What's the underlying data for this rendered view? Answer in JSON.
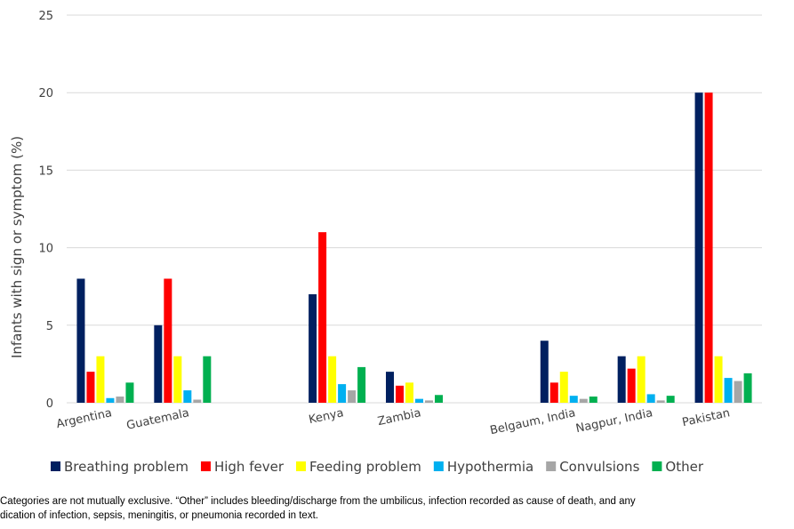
{
  "chart_data": {
    "type": "bar",
    "title": "",
    "xlabel": "",
    "ylabel": "Infants with sign or symptom (%)",
    "ylim": [
      0,
      25
    ],
    "yticks": [
      0,
      5,
      10,
      15,
      20,
      25
    ],
    "grid": true,
    "legend_position": "bottom",
    "categories": [
      "Argentina",
      "Guatemala",
      "",
      "Kenya",
      "Zambia",
      "",
      "Belgaum, India",
      "Nagpur, India",
      "Pakistan"
    ],
    "series": [
      {
        "name": "Breathing problem",
        "color": "#002060",
        "values": [
          8,
          5,
          null,
          7,
          2,
          null,
          4,
          3,
          20
        ]
      },
      {
        "name": "High fever",
        "color": "#ff0000",
        "values": [
          2,
          8,
          null,
          11,
          1.1,
          null,
          1.3,
          2.2,
          20
        ]
      },
      {
        "name": "Feeding problem",
        "color": "#ffff00",
        "values": [
          3,
          3,
          null,
          3,
          1.3,
          null,
          2,
          3,
          3
        ]
      },
      {
        "name": "Hypothermia",
        "color": "#00b0f0",
        "values": [
          0.3,
          0.8,
          null,
          1.2,
          0.25,
          null,
          0.45,
          0.55,
          1.6
        ]
      },
      {
        "name": "Convulsions",
        "color": "#a6a6a6",
        "values": [
          0.4,
          0.2,
          null,
          0.8,
          0.15,
          null,
          0.25,
          0.15,
          1.4
        ]
      },
      {
        "name": "Other",
        "color": "#00b050",
        "values": [
          1.3,
          3,
          null,
          2.3,
          0.5,
          null,
          0.4,
          0.45,
          1.9
        ]
      }
    ]
  },
  "footnote": {
    "line1": "Categories are not mutually exclusive.  “Other” includes bleeding/discharge from the umbilicus, infection recorded as cause of death, and any",
    "line2": "dication of infection, sepsis, meningitis, or pneumonia recorded in text."
  }
}
